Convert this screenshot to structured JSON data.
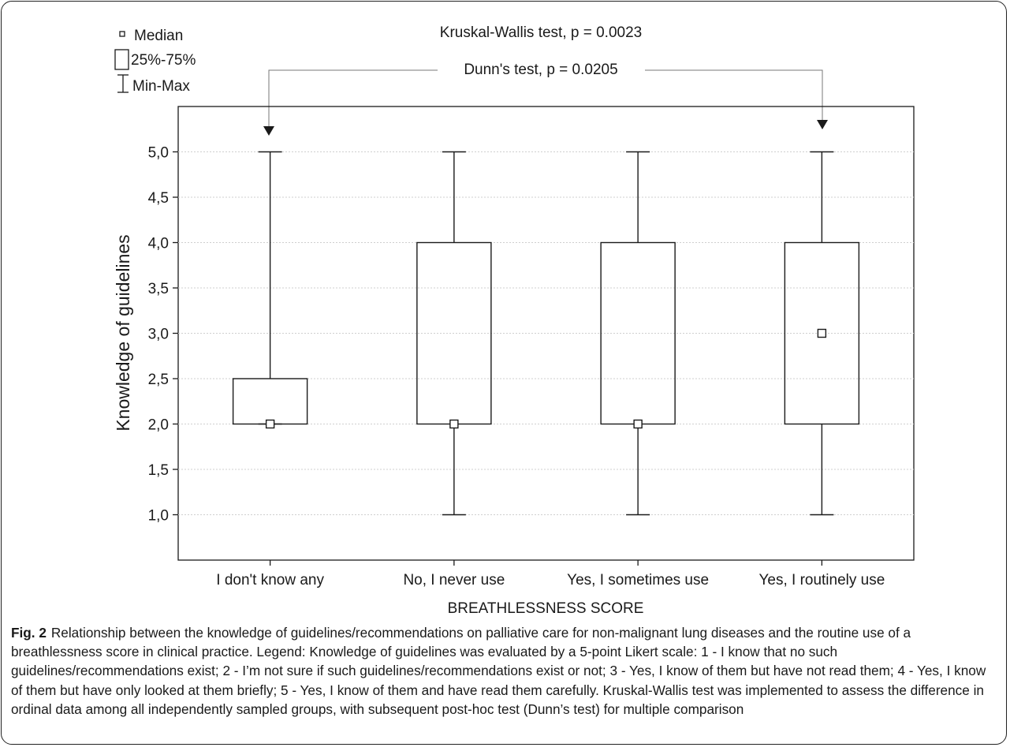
{
  "chart_data": {
    "type": "box",
    "title": "Kruskal-Wallis test, p = 0.0023",
    "annotation": {
      "text": "Dunn's test, p = 0.0205",
      "connects": [
        "I don't know any",
        "Yes, I routinely use"
      ]
    },
    "xlabel": "BREATHLESSNESS SCORE",
    "ylabel": "Knowledge of guidelines",
    "ylim": [
      0.5,
      5.5
    ],
    "yticks": [
      "1,0",
      "1,5",
      "2,0",
      "2,5",
      "3,0",
      "3,5",
      "4,0",
      "4,5",
      "5,0"
    ],
    "ytick_values": [
      1.0,
      1.5,
      2.0,
      2.5,
      3.0,
      3.5,
      4.0,
      4.5,
      5.0
    ],
    "grid": true,
    "legend": {
      "placement": "top-left",
      "entries": [
        "Median",
        "25%-75%",
        "Min-Max"
      ]
    },
    "categories": [
      "I don't know any",
      "No, I never use",
      "Yes, I sometimes use",
      "Yes, I routinely use"
    ],
    "boxes": [
      {
        "min": 2.0,
        "q1": 2.0,
        "median": 2.0,
        "q3": 2.5,
        "max": 5.0
      },
      {
        "min": 1.0,
        "q1": 2.0,
        "median": 2.0,
        "q3": 4.0,
        "max": 5.0
      },
      {
        "min": 1.0,
        "q1": 2.0,
        "median": 2.0,
        "q3": 4.0,
        "max": 5.0
      },
      {
        "min": 1.0,
        "q1": 2.0,
        "median": 3.0,
        "q3": 4.0,
        "max": 5.0
      }
    ]
  },
  "caption": {
    "label": "Fig. 2",
    "text": "Relationship between the knowledge of guidelines/recommendations on palliative care for non-malignant lung diseases and the routine use of a breathlessness score in clinical practice. Legend: Knowledge of guidelines was evaluated by a 5-point Likert scale: 1 - I know that no such guidelines/recommendations exist; 2 - I’m not sure if such guidelines/recommendations exist or not; 3 - Yes, I know of them but have not read them; 4 - Yes, I know of them but have only looked at them briefly; 5 - Yes, I know of them and have read them carefully. Kruskal-Wallis test was implemented to assess the difference in ordinal data among all independently sampled groups, with subsequent post-hoc test (Dunn’s test) for multiple comparison"
  }
}
